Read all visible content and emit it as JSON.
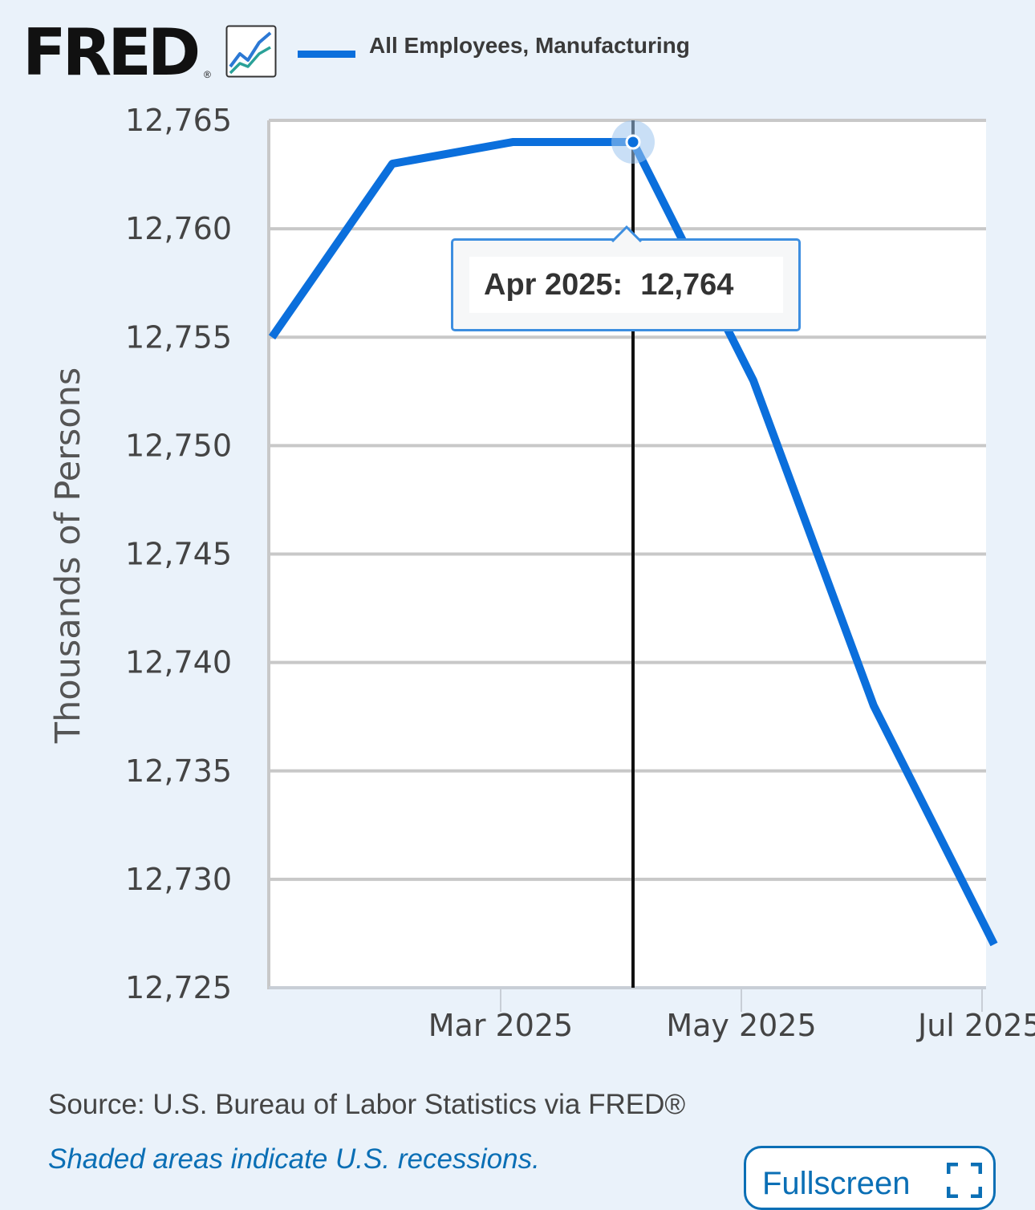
{
  "header": {
    "logo_text": "FRED",
    "logo_registered": "®",
    "legend_label": "All Employees, Manufacturing"
  },
  "colors": {
    "series": "#0b6fdc",
    "background": "#eaf2fa",
    "accent": "#0b6fb5"
  },
  "tooltip": {
    "date": "Apr 2025:",
    "value": "12,764"
  },
  "footer": {
    "source": "Source: U.S. Bureau of Labor Statistics via FRED®",
    "recession_note": "Shaded areas indicate U.S. recessions.",
    "fullscreen_label": "Fullscreen"
  },
  "chart_data": {
    "type": "line",
    "ylabel": "Thousands of Persons",
    "xlabel": "",
    "ylim": [
      12725,
      12765
    ],
    "yticks": [
      12765,
      12760,
      12755,
      12750,
      12745,
      12740,
      12735,
      12730,
      12725
    ],
    "ytick_labels": [
      "12,765",
      "12,760",
      "12,755",
      "12,750",
      "12,745",
      "12,740",
      "12,735",
      "12,730",
      "12,725"
    ],
    "xtick_labels": [
      "Mar 2025",
      "May 2025",
      "Jul 2025"
    ],
    "x": [
      "2025-01",
      "2025-02",
      "2025-03",
      "2025-04",
      "2025-05",
      "2025-06",
      "2025-07"
    ],
    "series": [
      {
        "name": "All Employees, Manufacturing",
        "values": [
          12755,
          12763,
          12764,
          12764,
          12753,
          12738,
          12727
        ]
      }
    ],
    "highlight": {
      "x": "2025-04",
      "value": 12764
    },
    "grid": true,
    "legend_position": "top"
  }
}
